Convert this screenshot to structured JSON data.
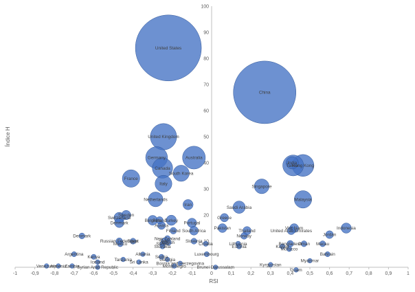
{
  "chart_data": {
    "type": "scatter",
    "xlabel": "RSI",
    "ylabel": "Índice H",
    "xlim": [
      -1,
      1
    ],
    "ylim": [
      0,
      100
    ],
    "x_ticks": [
      "-1",
      "-0,9",
      "-0,8",
      "-0,7",
      "-0,6",
      "-0,5",
      "-0,4",
      "-0,3",
      "-0,2",
      "-0,1",
      "0",
      "0,1",
      "0,2",
      "0,3",
      "0,4",
      "0,5",
      "0,6",
      "0,7",
      "0,8",
      "0,9",
      "1"
    ],
    "y_ticks": [
      "0",
      "10",
      "20",
      "30",
      "40",
      "50",
      "60",
      "70",
      "80",
      "90",
      "100"
    ],
    "grid": false,
    "bubble_color": "#4472C4",
    "points": [
      {
        "label": "United States",
        "x": -0.22,
        "y": 84,
        "size": 1000
      },
      {
        "label": "China",
        "x": 0.27,
        "y": 67,
        "size": 900
      },
      {
        "label": "United Kingdom",
        "x": -0.245,
        "y": 50,
        "size": 160
      },
      {
        "label": "Germany",
        "x": -0.28,
        "y": 42,
        "size": 110
      },
      {
        "label": "Australia",
        "x": -0.09,
        "y": 42,
        "size": 120
      },
      {
        "label": "Canada",
        "x": -0.25,
        "y": 38,
        "size": 95
      },
      {
        "label": "South Korea",
        "x": -0.155,
        "y": 36,
        "size": 60
      },
      {
        "label": "France",
        "x": -0.41,
        "y": 34,
        "size": 70
      },
      {
        "label": "Italy",
        "x": -0.245,
        "y": 32,
        "size": 65
      },
      {
        "label": "Taiwan",
        "x": 0.415,
        "y": 39,
        "size": 100
      },
      {
        "label": "India",
        "x": 0.41,
        "y": 40,
        "size": 35
      },
      {
        "label": "Hong Kong",
        "x": 0.465,
        "y": 39,
        "size": 110
      },
      {
        "label": "Singapore",
        "x": 0.255,
        "y": 31,
        "size": 50
      },
      {
        "label": "Malaysia",
        "x": 0.465,
        "y": 26,
        "size": 70
      },
      {
        "label": "Netherlands",
        "x": -0.285,
        "y": 26,
        "size": 50
      },
      {
        "label": "Iran",
        "x": -0.12,
        "y": 24,
        "size": 24
      },
      {
        "label": "Saudi Arabia",
        "x": 0.14,
        "y": 23,
        "size": 35
      },
      {
        "label": "Sweden",
        "x": -0.435,
        "y": 20,
        "size": 20
      },
      {
        "label": "Switzerland",
        "x": -0.47,
        "y": 19,
        "size": 26
      },
      {
        "label": "Greece",
        "x": 0.065,
        "y": 19,
        "size": 16
      },
      {
        "label": "Belgium",
        "x": -0.3,
        "y": 18,
        "size": 22
      },
      {
        "label": "Poland",
        "x": -0.265,
        "y": 18,
        "size": 12
      },
      {
        "label": "Turkey",
        "x": -0.205,
        "y": 18,
        "size": 24
      },
      {
        "label": "Denmark",
        "x": -0.47,
        "y": 17,
        "size": 20
      },
      {
        "label": "Portugal",
        "x": -0.1,
        "y": 17,
        "size": 20
      },
      {
        "label": "Austria",
        "x": -0.255,
        "y": 16,
        "size": 14
      },
      {
        "label": "Pakistan",
        "x": 0.055,
        "y": 15,
        "size": 18
      },
      {
        "label": "Viet Nam",
        "x": 0.42,
        "y": 15,
        "size": 18
      },
      {
        "label": "United Arab Emirates",
        "x": 0.405,
        "y": 14,
        "size": 14
      },
      {
        "label": "Indonesia",
        "x": 0.685,
        "y": 15,
        "size": 24
      },
      {
        "label": "South Africa",
        "x": -0.09,
        "y": 14,
        "size": 18
      },
      {
        "label": "Finland",
        "x": -0.195,
        "y": 14,
        "size": 10
      },
      {
        "label": "Thailand",
        "x": 0.18,
        "y": 14,
        "size": 16
      },
      {
        "label": "Jordan",
        "x": 0.6,
        "y": 12.5,
        "size": 14
      },
      {
        "label": "Norway",
        "x": 0.165,
        "y": 12,
        "size": 10
      },
      {
        "label": "Denmark",
        "x": -0.66,
        "y": 12,
        "size": 8
      },
      {
        "label": "New Zealand",
        "x": -0.225,
        "y": 11,
        "size": 8
      },
      {
        "label": "Spain",
        "x": -0.24,
        "y": 10,
        "size": 10
      },
      {
        "label": "Slovenia",
        "x": -0.09,
        "y": 10,
        "size": 8
      },
      {
        "label": "Russian Federation",
        "x": -0.47,
        "y": 10,
        "size": 10
      },
      {
        "label": "Mexico",
        "x": -0.465,
        "y": 9,
        "size": 8
      },
      {
        "label": "Egypt",
        "x": -0.4,
        "y": 10,
        "size": 8
      },
      {
        "label": "Czech",
        "x": -0.22,
        "y": 9.5,
        "size": 8
      },
      {
        "label": "Serbia",
        "x": -0.25,
        "y": 9,
        "size": 6
      },
      {
        "label": "Slovakia",
        "x": -0.25,
        "y": 8,
        "size": 6
      },
      {
        "label": "Croatia",
        "x": -0.03,
        "y": 9,
        "size": 6
      },
      {
        "label": "Lithuania",
        "x": 0.135,
        "y": 9,
        "size": 6
      },
      {
        "label": "Estonia",
        "x": 0.14,
        "y": 8,
        "size": 6
      },
      {
        "label": "Bangladesh",
        "x": 0.4,
        "y": 9,
        "size": 10
      },
      {
        "label": "Oman",
        "x": 0.47,
        "y": 9,
        "size": 8
      },
      {
        "label": "Macau",
        "x": 0.565,
        "y": 9,
        "size": 8
      },
      {
        "label": "Kuwait",
        "x": 0.36,
        "y": 8,
        "size": 6
      },
      {
        "label": "Morocco",
        "x": 0.395,
        "y": 7,
        "size": 6
      },
      {
        "label": "Argentina",
        "x": -0.7,
        "y": 5,
        "size": 6
      },
      {
        "label": "Kenya",
        "x": -0.6,
        "y": 4,
        "size": 6
      },
      {
        "label": "Iceland",
        "x": -0.58,
        "y": 2,
        "size": 5
      },
      {
        "label": "Tanzania",
        "x": -0.45,
        "y": 3,
        "size": 5
      },
      {
        "label": "Albania",
        "x": -0.35,
        "y": 5,
        "size": 5
      },
      {
        "label": "Sri Lanka",
        "x": -0.37,
        "y": 2,
        "size": 5
      },
      {
        "label": "Serbia",
        "x": -0.255,
        "y": 4,
        "size": 6
      },
      {
        "label": "Georgia",
        "x": -0.225,
        "y": 3,
        "size": 5
      },
      {
        "label": "Luxembourg",
        "x": -0.025,
        "y": 5,
        "size": 6
      },
      {
        "label": "Bahrain",
        "x": 0.59,
        "y": 5,
        "size": 6
      },
      {
        "label": "Myanmar",
        "x": 0.5,
        "y": 2.5,
        "size": 5
      },
      {
        "label": "Montenegro",
        "x": -0.19,
        "y": 0.5,
        "size": 5
      },
      {
        "label": "Bosnia and Herzegovina",
        "x": -0.16,
        "y": 1.5,
        "size": 5
      },
      {
        "label": "Kyrgyzstan",
        "x": 0.3,
        "y": 1,
        "size": 5
      },
      {
        "label": "Brunei Darussalam",
        "x": 0.02,
        "y": 0,
        "size": 5
      },
      {
        "label": "Guam",
        "x": 0.43,
        "y": -1,
        "size": 5
      },
      {
        "label": "Venezuela",
        "x": -0.84,
        "y": 0.5,
        "size": 5
      },
      {
        "label": "Armenia",
        "x": -0.78,
        "y": 0.5,
        "size": 5
      },
      {
        "label": "Zambia",
        "x": -0.71,
        "y": 0.5,
        "size": 5
      },
      {
        "label": "Syrian Arab Republic",
        "x": -0.58,
        "y": 0,
        "size": 5
      }
    ]
  }
}
